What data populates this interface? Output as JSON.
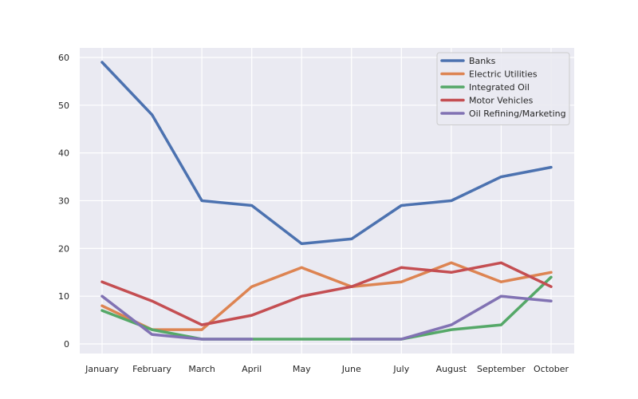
{
  "chart_data": {
    "type": "line",
    "title": "",
    "xlabel": "",
    "ylabel": "",
    "categories": [
      "January",
      "February",
      "March",
      "April",
      "May",
      "June",
      "July",
      "August",
      "September",
      "October"
    ],
    "ylim": [
      -2,
      62
    ],
    "yticks": [
      0,
      10,
      20,
      30,
      40,
      50,
      60
    ],
    "grid": true,
    "legend_position": "top-right",
    "series": [
      {
        "name": "Banks",
        "color": "#4c72b0",
        "values": [
          59,
          48,
          30,
          29,
          21,
          22,
          29,
          30,
          35,
          37
        ]
      },
      {
        "name": "Electric Utilities",
        "color": "#dd8452",
        "values": [
          8,
          3,
          3,
          12,
          16,
          12,
          13,
          17,
          13,
          15
        ]
      },
      {
        "name": "Integrated Oil",
        "color": "#55a868",
        "values": [
          7,
          3,
          1,
          1,
          1,
          1,
          1,
          3,
          4,
          14
        ]
      },
      {
        "name": "Motor Vehicles",
        "color": "#c44e52",
        "values": [
          13,
          9,
          4,
          6,
          10,
          12,
          16,
          15,
          17,
          12
        ]
      },
      {
        "name": "Oil Refining/Marketing",
        "color": "#8172b3",
        "values": [
          10,
          2,
          1,
          1,
          null,
          1,
          1,
          4,
          10,
          9
        ]
      }
    ]
  }
}
